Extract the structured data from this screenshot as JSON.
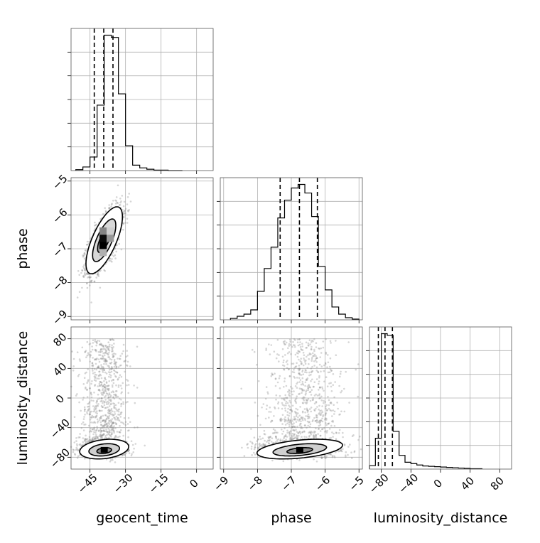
{
  "chart_data": {
    "type": "corner",
    "parameters": [
      "geocent_time",
      "phase",
      "luminosity_distance"
    ],
    "axis_ranges": {
      "geocent_time": [
        -53,
        7
      ],
      "phase": [
        -9.1,
        -4.9
      ],
      "luminosity_distance": [
        -96,
        96
      ]
    },
    "ticks": {
      "geocent_time": [
        -45,
        -30,
        -15,
        0
      ],
      "phase": [
        -9,
        -8,
        -7,
        -6,
        -5
      ],
      "luminosity_distance": [
        -80,
        -40,
        0,
        40,
        80
      ]
    },
    "tick_labels": {
      "geocent_time": [
        "−45",
        "−30",
        "−15",
        "0"
      ],
      "phase": [
        "−9",
        "−8",
        "−7",
        "−6",
        "−5"
      ],
      "luminosity_distance": [
        "−80",
        "−40",
        "0",
        "40",
        "80"
      ]
    },
    "grid": true,
    "histograms": {
      "geocent_time": {
        "bin_edges": [
          -51,
          -48,
          -45,
          -42,
          -39,
          -36,
          -33,
          -30,
          -27,
          -24,
          -21,
          -18,
          -15,
          -12,
          -9,
          -6
        ],
        "counts": [
          2,
          8,
          30,
          145,
          300,
          295,
          170,
          55,
          12,
          6,
          3,
          1,
          1,
          0,
          0
        ],
        "quantiles": [
          -43.2,
          -39.2,
          -35.3
        ]
      },
      "phase": {
        "bin_edges": [
          -8.8,
          -8.6,
          -8.4,
          -8.2,
          -8.0,
          -7.8,
          -7.6,
          -7.4,
          -7.2,
          -7.0,
          -6.8,
          -6.6,
          -6.4,
          -6.2,
          -6.0,
          -5.8,
          -5.6,
          -5.4,
          -5.2,
          -5.0
        ],
        "counts": [
          2,
          5,
          8,
          14,
          40,
          72,
          102,
          143,
          168,
          185,
          190,
          178,
          145,
          75,
          42,
          18,
          8,
          3,
          1
        ],
        "quantiles": [
          -7.33,
          -6.76,
          -6.23
        ]
      },
      "luminosity_distance": {
        "bin_edges": [
          -96,
          -88,
          -80,
          -72,
          -64,
          -56,
          -48,
          -40,
          -32,
          -24,
          -16,
          -8,
          0,
          8,
          16,
          24,
          32,
          40,
          48,
          56
        ],
        "counts": [
          10,
          90,
          395,
          390,
          110,
          40,
          20,
          16,
          12,
          9,
          8,
          7,
          6,
          5,
          4,
          3,
          2,
          1,
          1
        ],
        "quantiles": [
          -84,
          -75,
          -65
        ]
      }
    },
    "scatter_2d": [
      {
        "x": "geocent_time",
        "y": "phase",
        "mean": [
          -39,
          -6.75
        ],
        "std": [
          3.5,
          0.45
        ],
        "correlation": 0.7,
        "contour_levels": [
          0.393,
          0.865,
          0.989
        ]
      },
      {
        "x": "geocent_time",
        "y": "luminosity_distance",
        "mode_center": [
          -39,
          -72
        ],
        "mode_std": [
          4.5,
          7
        ],
        "tail_top": 80,
        "contour_levels": [
          0.393,
          0.865,
          0.989
        ]
      },
      {
        "x": "phase",
        "y": "luminosity_distance",
        "mode_center": [
          -6.75,
          -72
        ],
        "mode_std": [
          0.55,
          7
        ],
        "correlation": 0.4,
        "tail_top": 80,
        "contour_levels": [
          0.393,
          0.865,
          0.989
        ]
      }
    ]
  },
  "labels": {
    "geocent_time": "geocent_time",
    "phase": "phase",
    "luminosity_distance": "luminosity_distance"
  }
}
